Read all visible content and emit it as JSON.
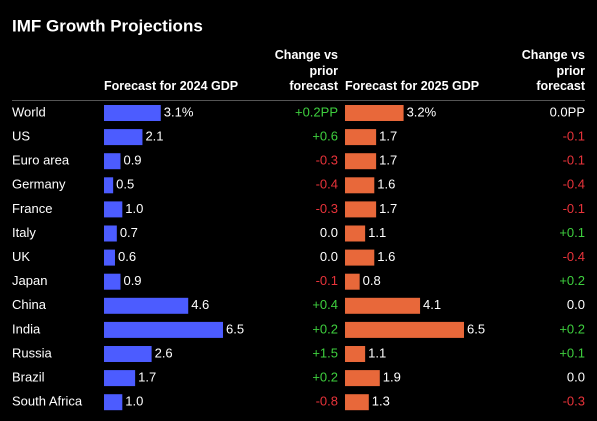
{
  "chart_data": {
    "type": "bar",
    "title": "IMF Growth Projections",
    "categories": [
      "World",
      "US",
      "Euro area",
      "Germany",
      "France",
      "Italy",
      "UK",
      "Japan",
      "China",
      "India",
      "Russia",
      "Brazil",
      "South Africa"
    ],
    "xlim": [
      0,
      6.5
    ],
    "positive_color": "#3ecf3e",
    "negative_color": "#e8333a",
    "zero_color": "#ffffff",
    "series": [
      {
        "name": "Forecast for 2024 GDP",
        "type": "bar",
        "color": "#4c5cff",
        "values": [
          3.1,
          2.1,
          0.9,
          0.5,
          1.0,
          0.7,
          0.6,
          0.9,
          4.6,
          6.5,
          2.6,
          1.7,
          1.0
        ],
        "value_labels": [
          "3.1%",
          "2.1",
          "0.9",
          "0.5",
          "1.0",
          "0.7",
          "0.6",
          "0.9",
          "4.6",
          "6.5",
          "2.6",
          "1.7",
          "1.0"
        ]
      },
      {
        "name": "Change vs prior forecast",
        "type": "text",
        "values": [
          0.2,
          0.6,
          -0.3,
          -0.4,
          -0.3,
          0.0,
          0.0,
          -0.1,
          0.4,
          0.2,
          1.5,
          0.2,
          -0.8
        ],
        "value_labels": [
          "+0.2PP",
          "+0.6",
          "-0.3",
          "-0.4",
          "-0.3",
          "0.0",
          "0.0",
          "-0.1",
          "+0.4",
          "+0.2",
          "+1.5",
          "+0.2",
          "-0.8"
        ]
      },
      {
        "name": "Forecast for 2025 GDP",
        "type": "bar",
        "color": "#e8683a",
        "values": [
          3.2,
          1.7,
          1.7,
          1.6,
          1.7,
          1.1,
          1.6,
          0.8,
          4.1,
          6.5,
          1.1,
          1.9,
          1.3
        ],
        "value_labels": [
          "3.2%",
          "1.7",
          "1.7",
          "1.6",
          "1.7",
          "1.1",
          "1.6",
          "0.8",
          "4.1",
          "6.5",
          "1.1",
          "1.9",
          "1.3"
        ]
      },
      {
        "name": "Change vs prior forecast",
        "type": "text",
        "values": [
          0.0,
          -0.1,
          -0.1,
          -0.4,
          -0.1,
          0.1,
          -0.4,
          0.2,
          0.0,
          0.2,
          0.1,
          0.0,
          -0.3
        ],
        "value_labels": [
          "0.0PP",
          "-0.1",
          "-0.1",
          "-0.4",
          "-0.1",
          "+0.1",
          "-0.4",
          "+0.2",
          "0.0",
          "+0.2",
          "+0.1",
          "0.0",
          "-0.3"
        ]
      }
    ]
  }
}
